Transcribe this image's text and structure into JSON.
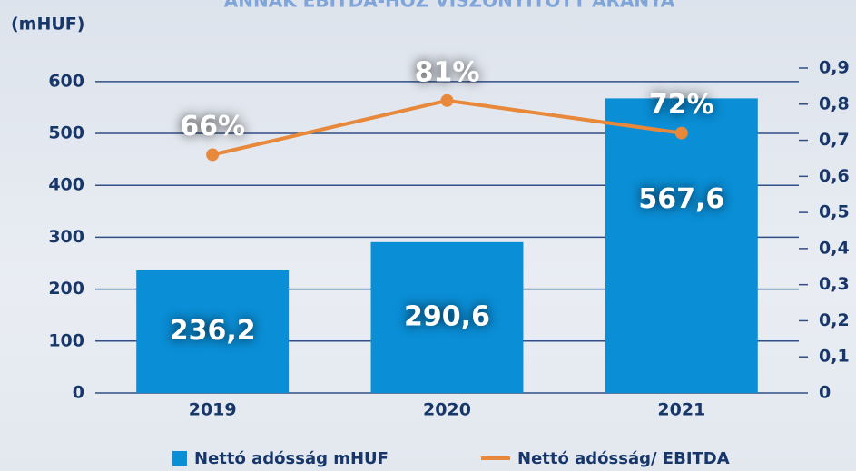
{
  "chart_data": {
    "type": "bar_line",
    "title": "ANNAK EBITDA-HOZ VISZONYÍTOTT ARÁNYA",
    "y_label": "(mHUF)",
    "categories": [
      "2019",
      "2020",
      "2021"
    ],
    "series": [
      {
        "name": "Nettó adósság mHUF",
        "type": "bar",
        "color": "#0a8ed6",
        "values": [
          236.2,
          290.6,
          567.6
        ],
        "value_labels": [
          "236,2",
          "290,6",
          "567,6"
        ]
      },
      {
        "name": "Nettó adósság/ EBITDA",
        "type": "line",
        "axis": "y2",
        "color": "#e8883a",
        "values": [
          0.66,
          0.81,
          0.72
        ],
        "value_labels": [
          "66%",
          "81%",
          "72%"
        ]
      }
    ],
    "ylim": [
      0,
      626
    ],
    "yticks": [
      0,
      100,
      200,
      300,
      400,
      500,
      600
    ],
    "y2lim": [
      0,
      0.9
    ],
    "y2ticks": [
      0,
      {
        "value": 0.1,
        "label": "0,1"
      },
      {
        "value": 0.2,
        "label": "0,2"
      },
      {
        "value": 0.3,
        "label": "0,3"
      },
      {
        "value": 0.4,
        "label": "0,4"
      },
      {
        "value": 0.5,
        "label": "0,5"
      },
      {
        "value": 0.6,
        "label": "0,6"
      },
      {
        "value": 0.7,
        "label": "0,7"
      },
      {
        "value": 0.8,
        "label": "0,8"
      },
      {
        "value": 0.9,
        "label": "0,9"
      }
    ],
    "grid": true,
    "legend": "bottom"
  }
}
